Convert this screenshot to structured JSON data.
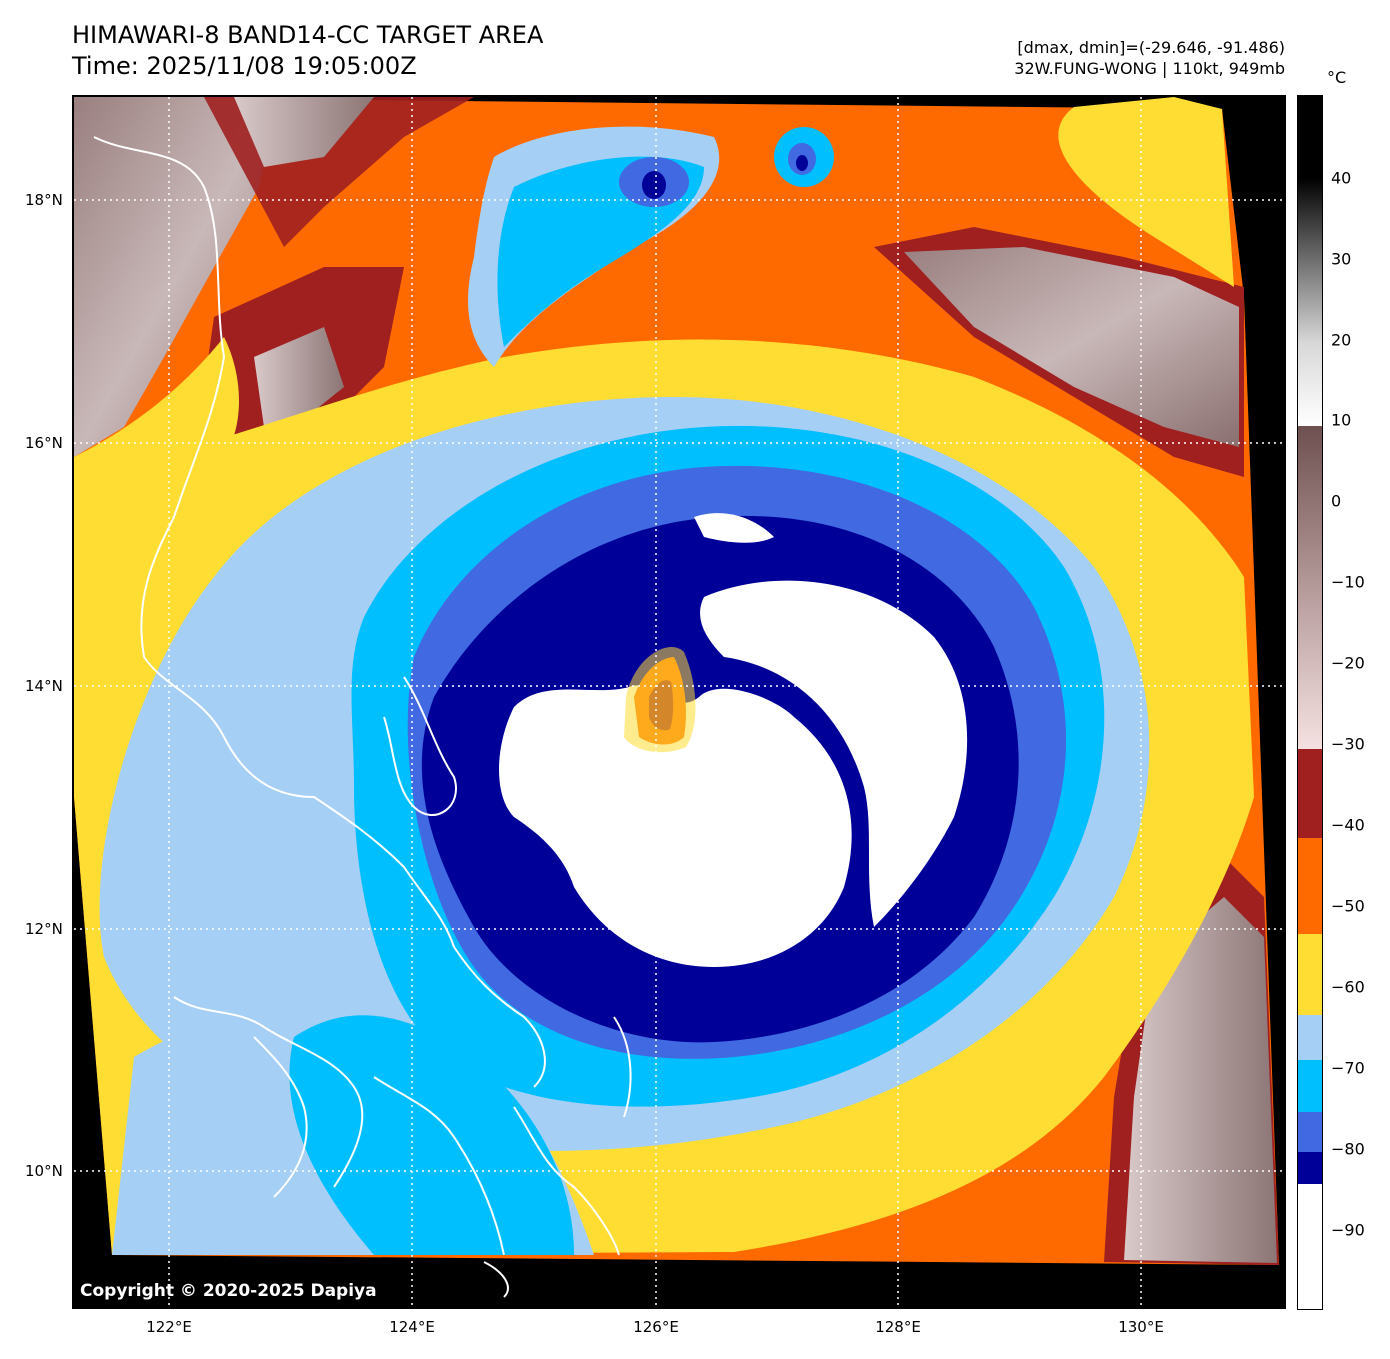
{
  "header": {
    "title_line1": "HIMAWARI-8 BAND14-CC TARGET AREA",
    "title_line2": "Time: 2025/11/08 19:05:00Z",
    "range": "[dmax, dmin]=(-29.646, -91.486)",
    "storm": "32W.FUNG-WONG | 110kt, 949mb"
  },
  "map": {
    "copyright": "Copyright © 2020-2025 Dapiya",
    "lat_labels": [
      "18°N",
      "16°N",
      "14°N",
      "12°N",
      "10°N"
    ],
    "lon_labels": [
      "122°E",
      "124°E",
      "126°E",
      "128°E",
      "130°E"
    ]
  },
  "colorbar": {
    "unit": "°C",
    "ticks": [
      "40",
      "30",
      "20",
      "10",
      "0",
      "−10",
      "−20",
      "−30",
      "−40",
      "−50",
      "−60",
      "−70",
      "−80",
      "−90"
    ],
    "colors": {
      "white": "#ffffff",
      "navy": "#000099",
      "royal_blue": "#4169e1",
      "sky_blue": "#00bfff",
      "light_blue": "#a6cff5",
      "yellow": "#ffdd33",
      "orange": "#ff6a00",
      "dark_red": "#a02020",
      "pink": "#f0d8d8"
    }
  }
}
